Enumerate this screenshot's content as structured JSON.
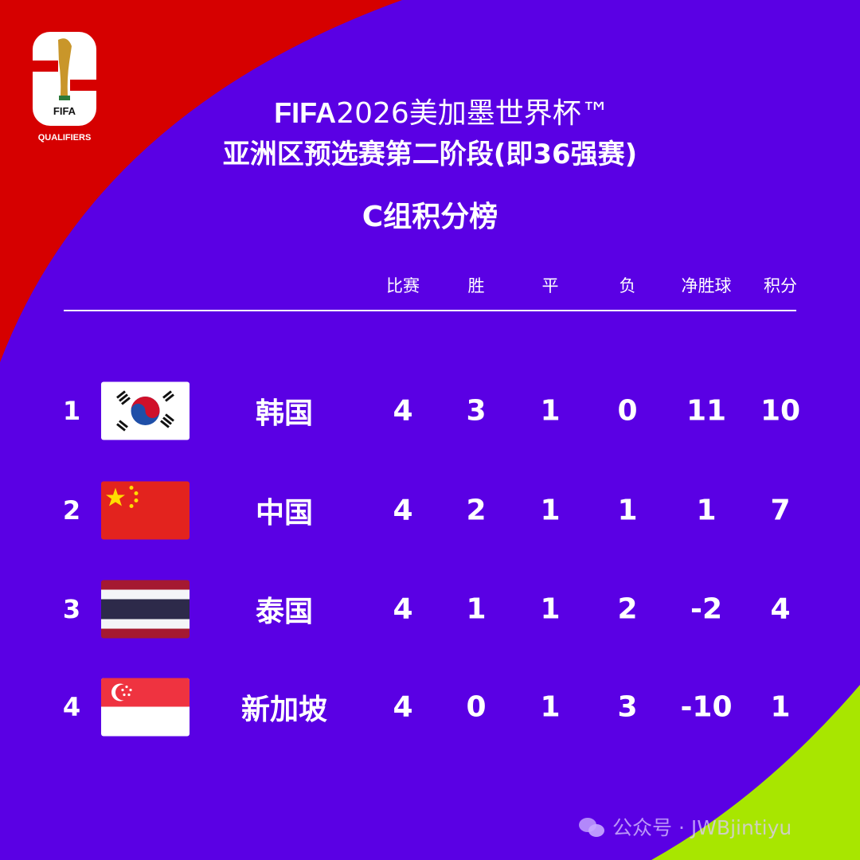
{
  "colors": {
    "background": "#5a00e4",
    "top_left": "#d60000",
    "bottom_right": "#a8e600"
  },
  "logo": {
    "text_fifa": "FIFA",
    "text_qualifiers": "QUALIFIERS"
  },
  "header": {
    "title_brand": "FIFA",
    "title_rest": "2026美加墨世界杯™",
    "title_line2": "亚洲区预选赛第二阶段(即36强赛)",
    "subtitle": "C组积分榜"
  },
  "table": {
    "columns": [
      "比赛",
      "胜",
      "平",
      "负",
      "净胜球",
      "积分"
    ],
    "rows": [
      {
        "rank": "1",
        "flag": "south-korea",
        "team": "韩国",
        "values": [
          "4",
          "3",
          "1",
          "0",
          "11",
          "10"
        ]
      },
      {
        "rank": "2",
        "flag": "china",
        "team": "中国",
        "values": [
          "4",
          "2",
          "1",
          "1",
          "1",
          "7"
        ]
      },
      {
        "rank": "3",
        "flag": "thailand",
        "team": "泰国",
        "values": [
          "4",
          "1",
          "1",
          "2",
          "-2",
          "4"
        ]
      },
      {
        "rank": "4",
        "flag": "singapore",
        "team": "新加坡",
        "values": [
          "4",
          "0",
          "1",
          "3",
          "-10",
          "1"
        ]
      }
    ]
  },
  "watermark": {
    "icon": "wechat-icon",
    "text": "公众号 · JWBjintiyu"
  }
}
